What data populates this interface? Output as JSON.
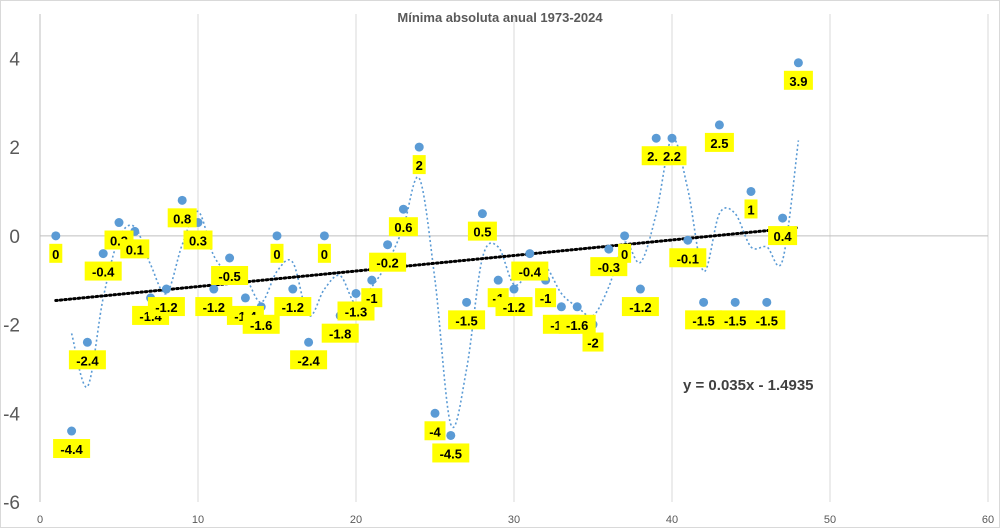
{
  "chart_data": {
    "type": "scatter",
    "title": "Mínima absoluta anual 1973-2024",
    "xlabel": "",
    "ylabel": "",
    "xlim": [
      0,
      60
    ],
    "ylim": [
      -6,
      5
    ],
    "x_ticks": [
      0,
      10,
      20,
      30,
      40,
      50,
      60
    ],
    "y_ticks": [
      4,
      2,
      0,
      -2,
      -4,
      -6
    ],
    "y_tick_labels": [
      "4",
      "2",
      "0",
      "-2",
      "-4",
      "-6"
    ],
    "grid": "vertical",
    "legend": "none",
    "series": [
      {
        "x": [
          1,
          2,
          3,
          4,
          5,
          6,
          7,
          8,
          9,
          10,
          11,
          12,
          13,
          14,
          15,
          16,
          17,
          18,
          19,
          20,
          21,
          22,
          23,
          24,
          25,
          26,
          27,
          28,
          29,
          30,
          31,
          32,
          33,
          34,
          35,
          36,
          37,
          38,
          39,
          40,
          41,
          42,
          43,
          44,
          45,
          46,
          47,
          48
        ],
        "y": [
          0,
          -4.4,
          -2.4,
          -0.4,
          0.3,
          0.1,
          -1.4,
          -1.2,
          0.8,
          0.3,
          -1.2,
          -0.5,
          -1.4,
          -1.6,
          0,
          -1.2,
          -2.4,
          0,
          -1.8,
          -1.3,
          -1,
          -0.2,
          0.6,
          2,
          -4,
          -4.5,
          -1.5,
          0.5,
          -1,
          -1.2,
          -0.4,
          -1,
          -1.6,
          -1.6,
          -2,
          -0.3,
          0,
          -1.2,
          2.2,
          2.2,
          -0.1,
          -1.5,
          2.5,
          -1.5,
          1,
          -1.5,
          0.4,
          3.9
        ],
        "labels": [
          "0",
          "-4.4",
          "-2.4",
          "-0.4",
          "0.3",
          "0.1",
          "-1.4",
          "-1.2",
          "0.8",
          "0.3",
          "-1.2",
          "-0.5",
          "-1.4",
          "-1.6",
          "0",
          "-1.2",
          "-2.4",
          "0",
          "-1.8",
          "-1.3",
          "-1",
          "-0.2",
          "0.6",
          "2",
          "-4",
          "-4.5",
          "-1.5",
          "0.5",
          "-1",
          "-1.2",
          "-0.4",
          "-1",
          "-1.6",
          "-1.6",
          "-2",
          "-0.3",
          "0",
          "-1.2",
          "2.2",
          "2.2",
          "-0.1",
          "-1.5",
          "2.5",
          "-1.5",
          "1",
          "-1.5",
          "0.4",
          "3.9"
        ],
        "color": "#5b9bd5"
      }
    ],
    "trendline": {
      "type": "linear",
      "slope": 0.035,
      "intercept": -1.4935,
      "equation": "y = 0.035x - 1.4935",
      "color": "#000000"
    },
    "moving_average": {
      "period": 2,
      "color": "#5b9bd5"
    },
    "label_background": "#ffff00"
  }
}
